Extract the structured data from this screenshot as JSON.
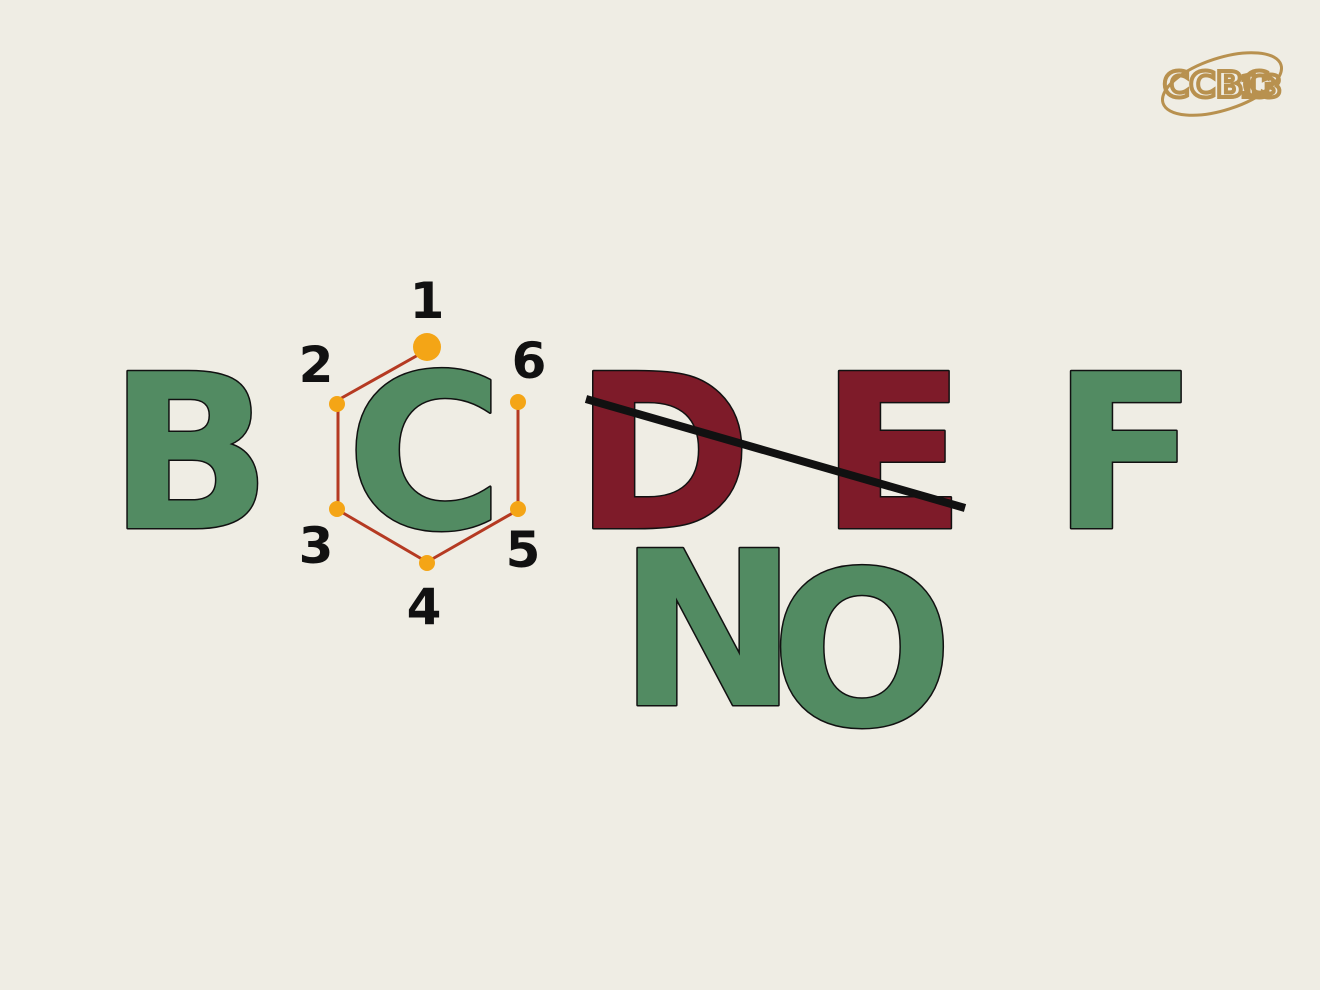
{
  "letters": {
    "b": "B",
    "c": "C",
    "d": "D",
    "e": "E",
    "f": "F",
    "n": "N",
    "o": "O"
  },
  "ring_numbers": {
    "n1": "1",
    "n2": "2",
    "n3": "3",
    "n4": "4",
    "n5": "5",
    "n6": "6"
  },
  "logo": {
    "text": "CCBC",
    "suffix": "13"
  },
  "colors": {
    "background": "#efede4",
    "green": "#528b62",
    "dark_red": "#7e1b29",
    "ring_bond": "#b53a22",
    "ring_atom": "#f4a516",
    "strike": "#111111",
    "logo": "#b8914f"
  }
}
